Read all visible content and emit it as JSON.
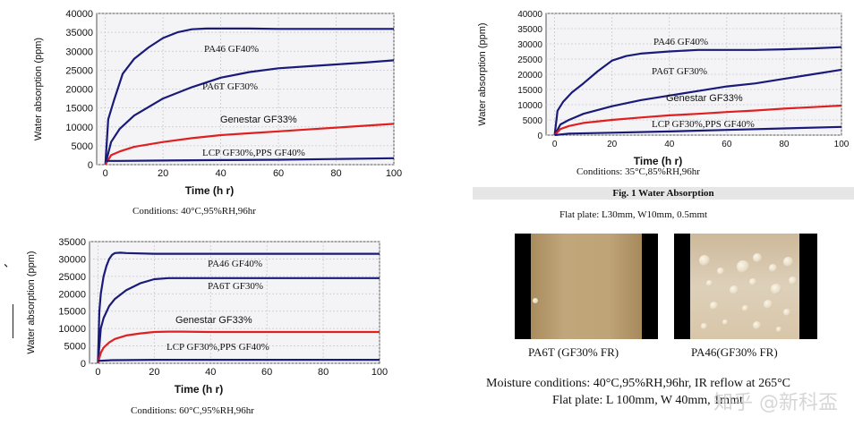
{
  "chart_data": [
    {
      "type": "line",
      "id": "chart40",
      "xlabel": "Time (hr)",
      "ylabel": "Water absorption (ppm)",
      "xlim": [
        0,
        100
      ],
      "ylim": [
        0,
        40000
      ],
      "xticks": [
        0,
        20,
        40,
        60,
        80,
        100
      ],
      "yticks": [
        0,
        5000,
        10000,
        15000,
        20000,
        25000,
        30000,
        35000,
        40000
      ],
      "conditions": "Conditions: 40°C,95%RH,96hr",
      "grid": true,
      "series": [
        {
          "name": "PA46 GF40%",
          "color": "#1a1a7a",
          "x": [
            0,
            1,
            3,
            6,
            10,
            15,
            20,
            25,
            30,
            35,
            40,
            50,
            60,
            70,
            80,
            90,
            100
          ],
          "y": [
            0,
            12000,
            17000,
            24000,
            28000,
            31000,
            33500,
            35000,
            35800,
            36000,
            36000,
            36000,
            35900,
            35900,
            35900,
            35900,
            35900
          ]
        },
        {
          "name": "PA6T GF30%",
          "color": "#1a1a7a",
          "x": [
            0,
            2,
            5,
            10,
            20,
            30,
            40,
            50,
            60,
            70,
            80,
            90,
            100
          ],
          "y": [
            0,
            6000,
            9500,
            13000,
            17500,
            20500,
            23000,
            24500,
            25500,
            26000,
            26500,
            27000,
            27600
          ]
        },
        {
          "name": "Genestar GF33%",
          "color": "#e02020",
          "x": [
            0,
            2,
            5,
            10,
            20,
            30,
            40,
            50,
            60,
            70,
            80,
            90,
            100
          ],
          "y": [
            0,
            2500,
            3500,
            4700,
            6000,
            7000,
            7800,
            8300,
            8800,
            9300,
            9800,
            10300,
            10800
          ]
        },
        {
          "name": "LCP GF30%,PPS GF40%",
          "color": "#1a1a7a",
          "x": [
            0,
            5,
            20,
            40,
            60,
            80,
            100
          ],
          "y": [
            1000,
            1000,
            1100,
            1200,
            1300,
            1500,
            1700
          ]
        }
      ]
    },
    {
      "type": "line",
      "id": "chart35",
      "xlabel": "Time (hr)",
      "ylabel": "Water absorption (ppm)",
      "xlim": [
        0,
        100
      ],
      "ylim": [
        0,
        40000
      ],
      "xticks": [
        0,
        20,
        40,
        60,
        80,
        100
      ],
      "yticks": [
        0,
        5000,
        10000,
        15000,
        20000,
        25000,
        30000,
        35000,
        40000
      ],
      "conditions": "Conditions: 35°C,85%RH,96hr",
      "grid": true,
      "series": [
        {
          "name": "PA46 GF40%",
          "color": "#1a1a7a",
          "x": [
            0,
            1,
            3,
            6,
            10,
            15,
            20,
            25,
            30,
            40,
            50,
            60,
            70,
            80,
            90,
            100
          ],
          "y": [
            0,
            8000,
            11000,
            14000,
            17000,
            21000,
            24500,
            26000,
            26800,
            27500,
            28000,
            28000,
            28000,
            28200,
            28500,
            28900
          ]
        },
        {
          "name": "PA6T GF30%",
          "color": "#1a1a7a",
          "x": [
            0,
            2,
            5,
            10,
            20,
            30,
            40,
            50,
            60,
            70,
            80,
            90,
            100
          ],
          "y": [
            0,
            3500,
            5000,
            7000,
            9500,
            11500,
            13000,
            14500,
            16000,
            17000,
            18500,
            20000,
            21500
          ]
        },
        {
          "name": "Genestar GF33%",
          "color": "#e02020",
          "x": [
            0,
            2,
            5,
            10,
            20,
            30,
            40,
            50,
            60,
            70,
            80,
            90,
            100
          ],
          "y": [
            0,
            2000,
            3000,
            4000,
            5000,
            5800,
            6500,
            7000,
            7600,
            8100,
            8700,
            9200,
            9700
          ]
        },
        {
          "name": "LCP GF30%,PPS GF40%",
          "color": "#1a1a7a",
          "x": [
            0,
            5,
            20,
            40,
            60,
            80,
            100
          ],
          "y": [
            0,
            500,
            800,
            1200,
            1700,
            2200,
            2700
          ]
        }
      ]
    },
    {
      "type": "line",
      "id": "chart60",
      "xlabel": "Time (hr)",
      "ylabel": "Water absorption (ppm)",
      "xlim": [
        0,
        100
      ],
      "ylim": [
        0,
        35000
      ],
      "xticks": [
        0,
        20,
        40,
        60,
        80,
        100
      ],
      "yticks": [
        0,
        5000,
        10000,
        15000,
        20000,
        25000,
        30000,
        35000
      ],
      "conditions": "Conditions: 60°C,95%RH,96hr",
      "grid": true,
      "series": [
        {
          "name": "PA46 GF40%",
          "color": "#1a1a7a",
          "x": [
            0,
            0.5,
            1,
            2,
            3,
            4,
            5,
            6,
            8,
            10,
            20,
            40,
            60,
            80,
            100
          ],
          "y": [
            0,
            15000,
            20000,
            25000,
            28000,
            30000,
            31200,
            31700,
            31800,
            31700,
            31500,
            31500,
            31500,
            31500,
            31500
          ]
        },
        {
          "name": "PA6T GF30%",
          "color": "#1a1a7a",
          "x": [
            0,
            1,
            2,
            4,
            6,
            10,
            15,
            20,
            25,
            30,
            40,
            60,
            80,
            100
          ],
          "y": [
            0,
            10000,
            13000,
            16500,
            18500,
            21000,
            23000,
            24200,
            24500,
            24500,
            24500,
            24500,
            24500,
            24500
          ]
        },
        {
          "name": "Genestar GF33%",
          "color": "#e02020",
          "x": [
            0,
            1,
            2,
            4,
            6,
            10,
            15,
            20,
            25,
            30,
            40,
            60,
            80,
            100
          ],
          "y": [
            0,
            3000,
            4500,
            6000,
            7000,
            8000,
            8600,
            9000,
            9100,
            9100,
            9000,
            9000,
            9000,
            9000
          ]
        },
        {
          "name": "LCP GF30%,PPS GF40%",
          "color": "#1a1a7a",
          "x": [
            0,
            5,
            20,
            40,
            60,
            80,
            100
          ],
          "y": [
            700,
            900,
            1000,
            1000,
            1000,
            1000,
            1000
          ]
        }
      ]
    }
  ],
  "labels": {
    "chart40": {
      "s0": "PA46 GF40%",
      "s1": "PA6T GF30%",
      "s2": "Genestar   GF33%",
      "s3": "LCP GF30%,PPS GF40%"
    },
    "chart35": {
      "s0": "PA46 GF40%",
      "s1": "PA6T GF30%",
      "s2": "Genestar    GF33%",
      "s3": "LCP GF30%,PPS GF40%"
    },
    "chart60": {
      "s0": "PA46 GF40%",
      "s1": "PA6T GF30%",
      "s2": "Genestar GF33%",
      "s3": "LCP GF30%,PPS GF40%"
    }
  },
  "axis_text": {
    "xlabel": "Time  (h r)",
    "ylabel": "Water absorption  (ppm)"
  },
  "figure": {
    "caption": "Fig. 1 Water Absorption",
    "flat_plate_top": "Flat plate: L30mm, W10mm, 0.5mmt",
    "photo_left_label": "PA6T (GF30% FR)",
    "photo_right_label": "PA46(GF30% FR)",
    "moisture_line1": "Moisture conditions: 40°C,95%RH,96hr, IR reflow at 265°C",
    "moisture_line2": "Flat plate: L 100mm, W 40mm, 1mmt"
  },
  "watermark": "知乎 @新科盃",
  "stray_mark": "、",
  "colors": {
    "curve_blue": "#1a1a7a",
    "curve_red": "#e02020",
    "plot_bg": "#f4f4f6",
    "photo_tan": "#b89c6e"
  }
}
